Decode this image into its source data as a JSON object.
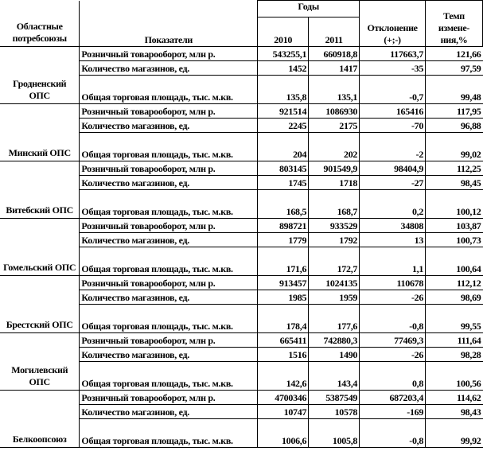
{
  "header": {
    "region": "Областные потребсоюзы",
    "indicator": "Показатели",
    "years": "Годы",
    "year1": "2010",
    "year2": "2011",
    "deviation": "Отклонение (+;-)",
    "rate": "Темп измене-ния,%"
  },
  "indicators": {
    "turnover": "Розничный товарооборот, млн р.",
    "shops": "Количество магазинов, ед.",
    "area": "Общая торговая площадь, тыс. м.кв."
  },
  "groups": [
    {
      "region": "Гродненский ОПС",
      "rows": [
        [
          "543255,1",
          "660918,8",
          "117663,7",
          "121,66"
        ],
        [
          "1452",
          "1417",
          "-35",
          "97,59"
        ],
        [
          "135,8",
          "135,1",
          "-0,7",
          "99,48"
        ]
      ]
    },
    {
      "region": "Минский ОПС",
      "rows": [
        [
          "921514",
          "1086930",
          "165416",
          "117,95"
        ],
        [
          "2245",
          "2175",
          "-70",
          "96,88"
        ],
        [
          "204",
          "202",
          "-2",
          "99,02"
        ]
      ]
    },
    {
      "region": "Витебский ОПС",
      "rows": [
        [
          "803145",
          "901549,9",
          "98404,9",
          "112,25"
        ],
        [
          "1745",
          "1718",
          "-27",
          "98,45"
        ],
        [
          "168,5",
          "168,7",
          "0,2",
          "100,12"
        ]
      ]
    },
    {
      "region": "Гомельский ОПС",
      "rows": [
        [
          "898721",
          "933529",
          "34808",
          "103,87"
        ],
        [
          "1779",
          "1792",
          "13",
          "100,73"
        ],
        [
          "171,6",
          "172,7",
          "1,1",
          "100,64"
        ]
      ]
    },
    {
      "region": "Брестский ОПС",
      "rows": [
        [
          "913457",
          "1024135",
          "110678",
          "112,12"
        ],
        [
          "1985",
          "1959",
          "-26",
          "98,69"
        ],
        [
          "178,4",
          "177,6",
          "-0,8",
          "99,55"
        ]
      ]
    },
    {
      "region": "Могилевский ОПС",
      "rows": [
        [
          "665411",
          "742880,3",
          "77469,3",
          "111,64"
        ],
        [
          "1516",
          "1490",
          "-26",
          "98,28"
        ],
        [
          "142,6",
          "143,4",
          "0,8",
          "100,56"
        ]
      ]
    },
    {
      "region": "Белкоопсоюз",
      "rows": [
        [
          "4700346",
          "5387549",
          "687203,4",
          "114,62"
        ],
        [
          "10747",
          "10578",
          "-169",
          "98,43"
        ],
        [
          "1006,6",
          "1005,8",
          "-0,8",
          "99,92"
        ]
      ]
    }
  ]
}
